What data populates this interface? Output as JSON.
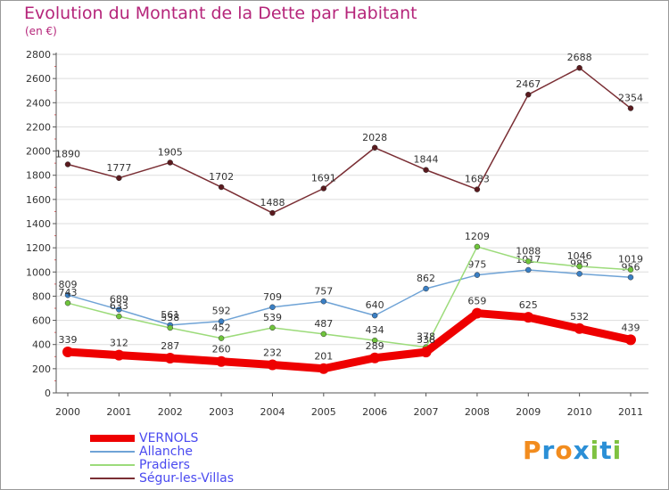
{
  "header": {
    "title": "Evolution du Montant de la Dette par Habitant",
    "subtitle": "(en €)"
  },
  "colors": {
    "title": "#b5257a",
    "legend_text": "#4a4af0",
    "grid": "#dddddd",
    "axis": "#555555",
    "frame": "#9a9a9a"
  },
  "brand": {
    "logo_text": "Proxiti",
    "letter_colors": [
      "#f28c1e",
      "#2b8fd6",
      "#f28c1e",
      "#2b8fd6",
      "#7fc241",
      "#2b8fd6",
      "#7fc241"
    ]
  },
  "chart_data": {
    "type": "line",
    "title": "Evolution du Montant de la Dette par Habitant",
    "subtitle": "(en €)",
    "xlabel": "",
    "ylabel": "",
    "x": [
      "2000",
      "2001",
      "2002",
      "2003",
      "2004",
      "2005",
      "2006",
      "2007",
      "2008",
      "2009",
      "2010",
      "2011"
    ],
    "ylim": [
      0,
      2800
    ],
    "yticks": [
      0,
      200,
      400,
      600,
      800,
      1000,
      1200,
      1400,
      1600,
      1800,
      2000,
      2200,
      2400,
      2600,
      2800
    ],
    "grid": "horizontal",
    "legend_position": "bottom-left",
    "series": [
      {
        "name": "Ségur-les-Villas",
        "color": "#7a2e34",
        "marker_color": "#5a1a1e",
        "emphasis": "normal",
        "values": [
          1890,
          1777,
          1905,
          1702,
          1488,
          1691,
          2028,
          1844,
          1683,
          2467,
          2688,
          2354
        ]
      },
      {
        "name": "Allanche",
        "color": "#6fa3d6",
        "marker_color": "#3a7fc4",
        "emphasis": "normal",
        "values": [
          809,
          689,
          561,
          592,
          709,
          757,
          640,
          862,
          975,
          1017,
          985,
          956
        ]
      },
      {
        "name": "Pradiers",
        "color": "#9cdb7a",
        "marker_color": "#6fc43c",
        "emphasis": "normal",
        "values": [
          743,
          633,
          538,
          452,
          539,
          487,
          434,
          378,
          1209,
          1088,
          1046,
          1019
        ]
      },
      {
        "name": "VERNOLS",
        "color": "#ee0000",
        "marker_color": "#ee0000",
        "emphasis": "bold",
        "values": [
          339,
          312,
          287,
          260,
          232,
          201,
          289,
          338,
          659,
          625,
          532,
          439
        ]
      }
    ],
    "legend_order": [
      "VERNOLS",
      "Allanche",
      "Pradiers",
      "Ségur-les-Villas"
    ]
  }
}
